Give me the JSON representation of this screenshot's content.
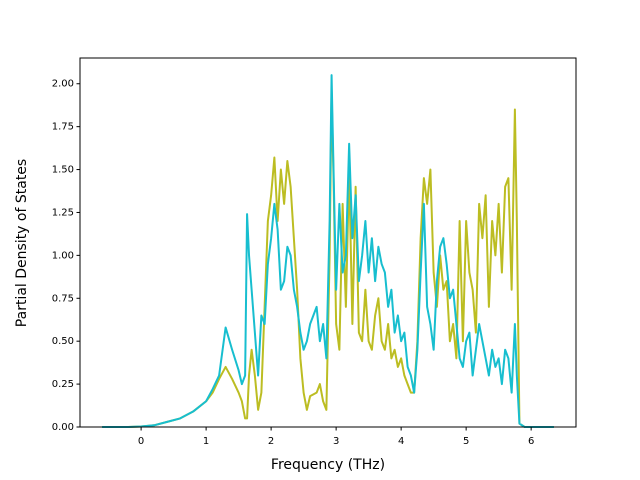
{
  "chart_data": {
    "type": "line",
    "x_label": "Frequency (THz)",
    "y_label": "Partial Density of States",
    "x": [
      -0.6,
      -0.2,
      0,
      0.2,
      0.4,
      0.6,
      0.8,
      1.0,
      1.1,
      1.2,
      1.3,
      1.4,
      1.5,
      1.55,
      1.6,
      1.63,
      1.66,
      1.7,
      1.75,
      1.8,
      1.85,
      1.9,
      1.95,
      2.0,
      2.05,
      2.1,
      2.15,
      2.2,
      2.25,
      2.3,
      2.35,
      2.4,
      2.45,
      2.5,
      2.55,
      2.6,
      2.7,
      2.75,
      2.8,
      2.85,
      2.9,
      2.93,
      2.96,
      3.0,
      3.05,
      3.1,
      3.15,
      3.2,
      3.25,
      3.3,
      3.35,
      3.4,
      3.45,
      3.5,
      3.55,
      3.6,
      3.65,
      3.7,
      3.75,
      3.8,
      3.85,
      3.9,
      3.95,
      4.0,
      4.05,
      4.1,
      4.15,
      4.2,
      4.25,
      4.3,
      4.35,
      4.4,
      4.45,
      4.5,
      4.55,
      4.6,
      4.65,
      4.7,
      4.75,
      4.8,
      4.85,
      4.9,
      4.95,
      5.0,
      5.05,
      5.1,
      5.15,
      5.2,
      5.25,
      5.3,
      5.35,
      5.4,
      5.45,
      5.5,
      5.55,
      5.6,
      5.65,
      5.7,
      5.75,
      5.78,
      5.82,
      5.9,
      6.35
    ],
    "series": [
      {
        "color": "#bcbd22",
        "values": [
          0,
          0,
          0.003,
          0.01,
          0.03,
          0.05,
          0.09,
          0.15,
          0.2,
          0.28,
          0.35,
          0.28,
          0.2,
          0.15,
          0.05,
          0.05,
          0.3,
          0.45,
          0.3,
          0.1,
          0.2,
          0.7,
          1.2,
          1.35,
          1.57,
          1.2,
          1.5,
          1.3,
          1.55,
          1.4,
          1.1,
          0.8,
          0.4,
          0.2,
          0.1,
          0.18,
          0.2,
          0.25,
          0.15,
          0.1,
          1.0,
          1.95,
          1.45,
          0.6,
          0.45,
          1.3,
          0.7,
          1.5,
          0.6,
          1.4,
          0.55,
          0.5,
          0.8,
          0.5,
          0.45,
          0.65,
          0.75,
          0.5,
          0.45,
          0.6,
          0.4,
          0.45,
          0.35,
          0.4,
          0.3,
          0.25,
          0.2,
          0.2,
          0.5,
          1.1,
          1.45,
          1.3,
          1.5,
          0.9,
          0.7,
          1.0,
          0.8,
          0.85,
          0.5,
          0.6,
          0.4,
          1.2,
          0.5,
          1.2,
          0.9,
          0.8,
          0.55,
          1.3,
          1.1,
          1.35,
          0.7,
          1.2,
          1.0,
          1.3,
          0.9,
          1.4,
          1.45,
          0.8,
          1.85,
          1.2,
          0.02,
          0,
          0
        ]
      },
      {
        "color": "#17becf",
        "values": [
          0,
          0,
          0.003,
          0.01,
          0.03,
          0.05,
          0.09,
          0.15,
          0.22,
          0.3,
          0.58,
          0.45,
          0.33,
          0.25,
          0.3,
          1.24,
          1.0,
          0.8,
          0.55,
          0.3,
          0.65,
          0.6,
          0.95,
          1.1,
          1.3,
          1.15,
          0.8,
          0.85,
          1.05,
          1.0,
          0.8,
          0.7,
          0.55,
          0.45,
          0.5,
          0.6,
          0.7,
          0.5,
          0.6,
          0.4,
          1.2,
          2.05,
          1.5,
          0.8,
          1.3,
          0.9,
          1.0,
          1.65,
          1.1,
          1.35,
          0.85,
          1.0,
          1.2,
          0.9,
          1.1,
          0.85,
          1.05,
          0.95,
          0.9,
          0.7,
          0.8,
          0.55,
          0.65,
          0.5,
          0.55,
          0.35,
          0.3,
          0.2,
          0.45,
          0.9,
          1.3,
          0.7,
          0.6,
          0.45,
          0.85,
          1.05,
          1.1,
          0.95,
          0.75,
          0.8,
          0.6,
          0.4,
          0.35,
          0.5,
          0.55,
          0.3,
          0.45,
          0.6,
          0.5,
          0.4,
          0.3,
          0.45,
          0.35,
          0.4,
          0.25,
          0.45,
          0.4,
          0.2,
          0.6,
          0.3,
          0.02,
          0,
          0
        ]
      }
    ],
    "xlim": [
      -0.94,
      6.69
    ],
    "ylim": [
      0,
      2.15
    ],
    "xticks": [
      0,
      1,
      2,
      3,
      4,
      5,
      6
    ],
    "yticks": [
      {
        "value": 0,
        "label": "0.00"
      },
      {
        "value": 0.25,
        "label": "0.25"
      },
      {
        "value": 0.5,
        "label": "0.50"
      },
      {
        "value": 0.75,
        "label": "0.75"
      },
      {
        "value": 1,
        "label": "1.00"
      },
      {
        "value": 1.25,
        "label": "1.25"
      },
      {
        "value": 1.5,
        "label": "1.50"
      },
      {
        "value": 1.75,
        "label": "1.75"
      },
      {
        "value": 2,
        "label": "2.00"
      }
    ],
    "grid": false
  }
}
